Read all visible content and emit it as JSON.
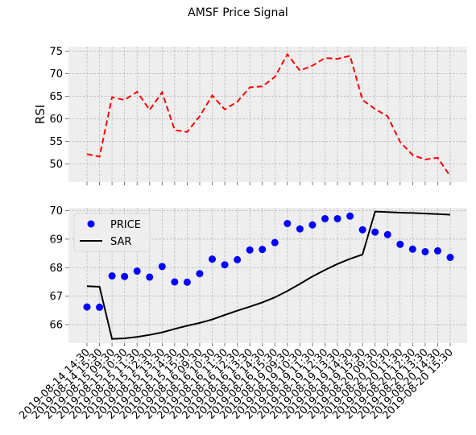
{
  "chart_data": {
    "title": "AMSF Price Signal",
    "x": [
      "2019-08-14 14:30",
      "2019-08-14 15:30",
      "2019-08-15 09:30",
      "2019-08-15 10:30",
      "2019-08-15 11:30",
      "2019-08-15 12:30",
      "2019-08-15 13:30",
      "2019-08-15 14:30",
      "2019-08-15 15:30",
      "2019-08-16 09:30",
      "2019-08-16 10:30",
      "2019-08-16 11:30",
      "2019-08-16 12:30",
      "2019-08-16 13:30",
      "2019-08-16 14:30",
      "2019-08-16 15:30",
      "2019-08-19 09:30",
      "2019-08-19 10:30",
      "2019-08-19 11:30",
      "2019-08-19 12:30",
      "2019-08-19 13:30",
      "2019-08-19 14:30",
      "2019-08-19 15:30",
      "2019-08-20 09:30",
      "2019-08-20 10:30",
      "2019-08-20 11:30",
      "2019-08-20 12:30",
      "2019-08-20 13:30",
      "2019-08-20 14:30",
      "2019-08-20 15:30"
    ],
    "panels": [
      {
        "type": "line",
        "ylabel": "RSI",
        "ylim": [
          46,
          76
        ],
        "yticks": [
          50,
          55,
          60,
          65,
          70,
          75
        ],
        "grid": true,
        "series": [
          {
            "style": "dashed",
            "color": "#ff0000",
            "values": [
              52.2,
              51.6,
              64.8,
              64.2,
              66.0,
              62.0,
              65.9,
              57.5,
              57.1,
              60.6,
              65.2,
              62.1,
              63.8,
              67.0,
              67.2,
              69.3,
              74.3,
              70.7,
              71.8,
              73.5,
              73.3,
              74.0,
              64.2,
              62.2,
              60.6,
              54.9,
              52.0,
              51.0,
              51.4,
              47.3
            ]
          }
        ]
      },
      {
        "type": "scatter+line",
        "ylabel": "",
        "ylim": [
          65.35,
          70.1
        ],
        "yticks": [
          66,
          67,
          68,
          69,
          70
        ],
        "grid": true,
        "legend": "top-left",
        "series": [
          {
            "name": "PRICE",
            "type": "scatter",
            "color": "#0000ff",
            "values": [
              66.62,
              66.61,
              67.71,
              67.69,
              67.88,
              67.67,
              68.04,
              67.5,
              67.49,
              67.79,
              68.3,
              68.1,
              68.28,
              68.62,
              68.64,
              68.88,
              69.55,
              69.36,
              69.5,
              69.72,
              69.72,
              69.81,
              69.33,
              69.25,
              69.16,
              68.82,
              68.65,
              68.56,
              68.59,
              68.36
            ]
          },
          {
            "name": "SAR",
            "type": "line",
            "color": "#000000",
            "values": [
              67.35,
              67.33,
              65.5,
              65.52,
              65.57,
              65.64,
              65.73,
              65.85,
              65.96,
              66.06,
              66.18,
              66.34,
              66.49,
              66.63,
              66.78,
              66.96,
              67.18,
              67.43,
              67.69,
              67.92,
              68.13,
              68.31,
              68.46,
              69.97,
              69.95,
              69.93,
              69.92,
              69.9,
              69.88,
              69.86
            ]
          }
        ]
      }
    ]
  }
}
